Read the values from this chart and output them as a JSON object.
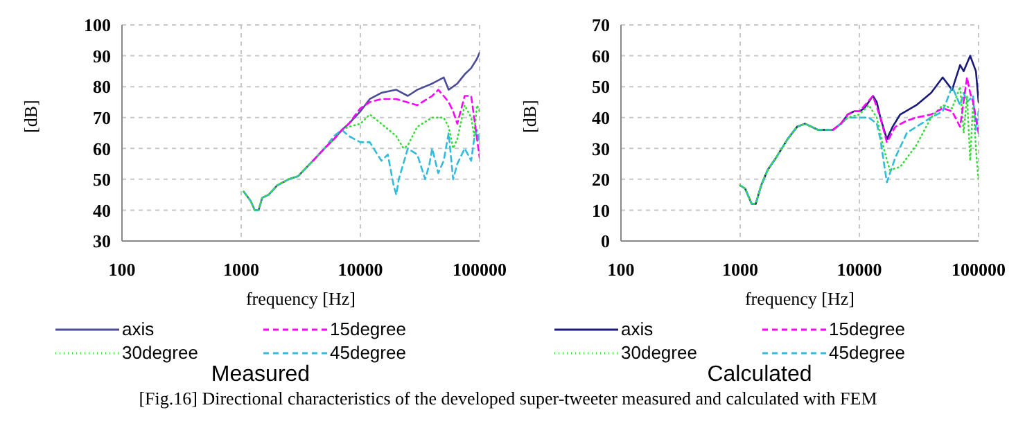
{
  "chart_data": [
    {
      "type": "line",
      "title": "Measured",
      "xlabel": "frequency [Hz]",
      "ylabel": "[dB]",
      "log": "x",
      "xlim": [
        100,
        100000
      ],
      "xticks": [
        100,
        1000,
        10000,
        100000
      ],
      "ylim": [
        30,
        100
      ],
      "yticks": [
        30,
        40,
        50,
        60,
        70,
        80,
        90,
        100
      ],
      "grid": true,
      "legend": "bottom",
      "marker": "none",
      "annotations": [
        "[Fig.16] Directional characteristics of the developed super-tweeter measured and calculated with FEM"
      ],
      "series": [
        {
          "name": "axis",
          "color": "#4b4b9b",
          "line_style": "solid",
          "x": [
            1050,
            1200,
            1300,
            1400,
            1500,
            1700,
            2000,
            2500,
            3000,
            4000,
            5000,
            6000,
            7000,
            8000,
            10000,
            12000,
            15000,
            20000,
            25000,
            30000,
            40000,
            50000,
            55000,
            65000,
            75000,
            85000,
            95000,
            100000
          ],
          "values": [
            46,
            43,
            40,
            40,
            44,
            45,
            48,
            50,
            51,
            56,
            60,
            63,
            66,
            68,
            72,
            76,
            78,
            79,
            77,
            79,
            81,
            83,
            79,
            81,
            84,
            86,
            89,
            91
          ]
        },
        {
          "name": "15degree",
          "color": "#ff00ff",
          "line_style": "dashed",
          "x": [
            4000,
            5000,
            6000,
            7000,
            8000,
            10000,
            12000,
            15000,
            20000,
            30000,
            40000,
            45000,
            50000,
            55000,
            60000,
            65000,
            75000,
            85000,
            90000,
            100000
          ],
          "values": [
            56,
            60,
            63,
            66,
            68,
            73,
            75,
            76,
            76,
            74,
            77,
            79,
            77,
            75,
            72,
            68,
            77,
            77,
            70,
            57
          ]
        },
        {
          "name": "30degree",
          "color": "#33dd33",
          "line_style": "dotted",
          "x": [
            1050,
            1200,
            1300,
            1400,
            1500,
            1700,
            2000,
            2500,
            3000,
            4000,
            5000,
            6000,
            7000,
            8000,
            10000,
            12000,
            15000,
            20000,
            23000,
            25000,
            30000,
            40000,
            50000,
            55000,
            60000,
            65000,
            75000,
            85000,
            90000,
            95000,
            100000
          ],
          "values": [
            46,
            43,
            40,
            40,
            44,
            45,
            48,
            50,
            51,
            56,
            60,
            63,
            66,
            67,
            68,
            71,
            68,
            64,
            60,
            61,
            67,
            70,
            70,
            67,
            60,
            63,
            74,
            70,
            64,
            74,
            72
          ]
        },
        {
          "name": "45degree",
          "color": "#33bbdd",
          "line_style": "dashed",
          "x": [
            1050,
            1200,
            1300,
            1400,
            1500,
            1700,
            2000,
            2500,
            3000,
            4000,
            5000,
            6000,
            7000,
            8000,
            10000,
            12000,
            15000,
            17000,
            19000,
            20000,
            21000,
            25000,
            30000,
            35000,
            38000,
            40000,
            45000,
            50000,
            55000,
            60000,
            65000,
            75000,
            85000,
            90000,
            95000,
            100000
          ],
          "values": [
            46,
            43,
            40,
            40,
            44,
            45,
            48,
            50,
            51,
            56,
            60,
            64,
            66,
            64,
            62,
            62,
            56,
            58,
            48,
            45,
            50,
            60,
            58,
            50,
            55,
            60,
            52,
            56,
            65,
            50,
            55,
            60,
            56,
            63,
            66,
            62
          ]
        }
      ]
    },
    {
      "type": "line",
      "title": "Calculated",
      "xlabel": "frequency [Hz]",
      "ylabel": "[dB]",
      "log": "x",
      "xlim": [
        100,
        100000
      ],
      "xticks": [
        100,
        1000,
        10000,
        100000
      ],
      "ylim": [
        0,
        70
      ],
      "yticks": [
        0,
        10,
        20,
        30,
        40,
        50,
        60,
        70
      ],
      "grid": true,
      "legend": "bottom",
      "marker": "none",
      "series": [
        {
          "name": "axis",
          "color": "#1a1a7a",
          "line_style": "solid",
          "x": [
            1000,
            1100,
            1250,
            1350,
            1500,
            1700,
            2000,
            2500,
            3000,
            3500,
            4500,
            6000,
            7000,
            8000,
            9000,
            10000,
            11000,
            13000,
            14000,
            15000,
            17000,
            19000,
            22000,
            30000,
            40000,
            50000,
            60000,
            70000,
            75000,
            85000,
            95000,
            100000
          ],
          "values": [
            18,
            17,
            12,
            12,
            18,
            23,
            27,
            33,
            37,
            38,
            36,
            36,
            38,
            41,
            42,
            42,
            43,
            47,
            45,
            40,
            33,
            37,
            41,
            44,
            48,
            53,
            49,
            57,
            55,
            60,
            55,
            45
          ]
        },
        {
          "name": "15degree",
          "color": "#ff00ff",
          "line_style": "dashed",
          "x": [
            6000,
            7000,
            8000,
            9000,
            10000,
            13000,
            15000,
            17000,
            20000,
            25000,
            30000,
            40000,
            50000,
            60000,
            70000,
            80000,
            85000,
            90000,
            100000
          ],
          "values": [
            36,
            38,
            41,
            42,
            42,
            47,
            40,
            32,
            37,
            39,
            40,
            41,
            43,
            42,
            37,
            53,
            48,
            45,
            35
          ]
        },
        {
          "name": "30degree",
          "color": "#33dd33",
          "line_style": "dotted",
          "x": [
            1000,
            1100,
            1250,
            1350,
            1500,
            1700,
            2000,
            2500,
            3000,
            3500,
            4500,
            6000,
            7000,
            8000,
            10000,
            12000,
            14000,
            16000,
            18000,
            22000,
            30000,
            40000,
            50000,
            60000,
            70000,
            75000,
            80000,
            85000,
            90000,
            95000,
            100000
          ],
          "values": [
            18,
            17,
            12,
            12,
            18,
            23,
            27,
            33,
            37,
            38,
            36,
            36,
            38,
            40,
            41,
            44,
            40,
            30,
            23,
            24,
            31,
            40,
            44,
            43,
            50,
            35,
            47,
            26,
            45,
            30,
            19
          ]
        },
        {
          "name": "45degree",
          "color": "#33bbdd",
          "line_style": "dashed",
          "x": [
            1000,
            1100,
            1250,
            1350,
            1500,
            1700,
            2000,
            2500,
            3000,
            3500,
            4500,
            6000,
            7000,
            8000,
            10000,
            12000,
            14000,
            15000,
            17000,
            20000,
            25000,
            30000,
            40000,
            50000,
            60000,
            70000,
            75000,
            80000,
            90000,
            95000,
            100000
          ],
          "values": [
            18,
            17,
            12,
            12,
            18,
            23,
            27,
            33,
            37,
            38,
            36,
            36,
            38,
            40,
            40,
            40,
            38,
            33,
            19,
            27,
            35,
            37,
            40,
            42,
            50,
            44,
            48,
            45,
            47,
            36,
            42
          ]
        }
      ]
    }
  ]
}
